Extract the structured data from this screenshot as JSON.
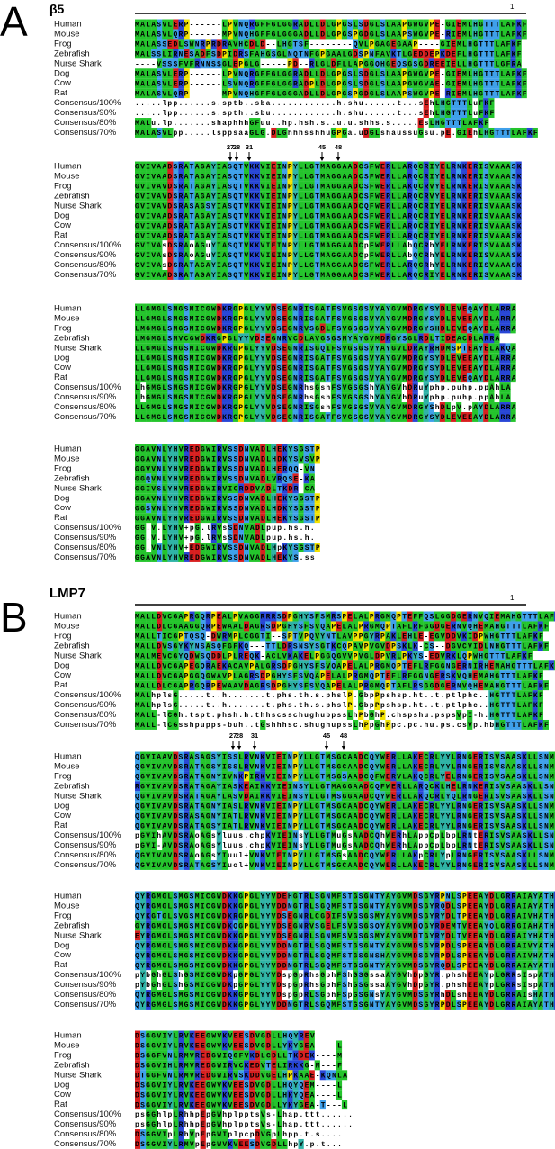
{
  "panels": [
    {
      "label": "A",
      "title": "β5",
      "position_marker": "1",
      "markers": [
        "27",
        "28",
        "31",
        "45",
        "48"
      ],
      "blocks": [
        {
          "rows": [
            {
              "name": "Human",
              "sequence": "MALASVLERP------LPVNQRGFFGLGGRADLLDLGPGSLSDGLSLAAPGWGVPE-GIEMLHGTTTLAFKF"
            },
            {
              "name": "Mouse",
              "sequence": "MALASVLQRP------MPVNQHGFFGLGGGADLLDLGPGSPGDGLSLAAPSWGVPE-RIEMLHGTTTLAFKF"
            },
            {
              "name": "Frog",
              "sequence": "MALASSEDLSWNRPRDRAVHCDLD--LHGTSF--------QVLPGAGEGAAP----GIEMLHGTTTLAFKF"
            },
            {
              "name": "Zebrafish",
              "sequence": "MALSSLIRNESADFSDPIDRSFAHGSGLNQTNFGPGAALGDSPNFAVKTLGEDDEPKDEFLHGTTTLAFKF"
            },
            {
              "name": "Nurse Shark",
              "sequence": "----VSSSFVFRNNSSGLEPGLG-----PD--RLGLDFLLAPGGQHGEQSGSGDREEIELLHGTTTLGFRA"
            },
            {
              "name": "Dog",
              "sequence": "MALASVLERP------LPVNQRGFFGLGGRADLLDLGPGSLSDGLSLAAPGWGVPE-GIEMLHGTTTLAFKF"
            },
            {
              "name": "Cow",
              "sequence": "MALASVLERP------LSVNQRGFFGLGGRADPLDLGPGSLSDGLSLAAPGWGVAE-GIEMLHGTTTLAFKF"
            },
            {
              "name": "Rat",
              "sequence": "MALASVLQRP------MPVNQHGFFGLGGGADLLDLGPGSPGDGLSLAAPSWGVPE-RIEMLHGTTTLAFKF"
            },
            {
              "name": "Consensus/100%",
              "sequence": ".....lpp......s.sptb..sba............h.shu......t...sEhLHGTTTLuFKF"
            },
            {
              "name": "Consensus/90%",
              "sequence": ".....lpp......s.spth..sbu............h.shu......t...sEhLHGTTTLuFKF"
            },
            {
              "name": "Consensus/80%",
              "sequence": "MALu.lp.......shaphhhGFuu..hp.hsh.s..u.u.shhs.s.....EsLHGTTTLAFKF"
            },
            {
              "name": "Consensus/70%",
              "sequence": "MALASVLpp.....lsppsaaGLG.DLGhhhsshhuGPGa.uDGLshaussuGsu.pE.GIEhLHGTTTLAFKF"
            }
          ]
        },
        {
          "rows": [
            {
              "name": "Human",
              "sequence": "GVIVAADSRATAGAYIASQTVKKVIEINPYLLGTMAGGAADCSFWERLLARQCRIYELRNKERISVAAASK"
            },
            {
              "name": "Mouse",
              "sequence": "GVIVAADSRATAGAYIASQTVKKVIEINPYLLGTMAGGAADCSFWERLLARQCRIYELRNKERISVAAASK"
            },
            {
              "name": "Frog",
              "sequence": "GVIVAVDSRATAGAYIASQTVKKVIEINPYLLGTMAGGAADCSFWERLLAKQCRVYELRNKERISVAAASK"
            },
            {
              "name": "Zebrafish",
              "sequence": "GVIVAVDSRATAGAYIASQTVKKVIEINPYLLGTMAGGAADCSFWERLLARQCRVYELRNKERISVAAASK"
            },
            {
              "name": "Nurse Shark",
              "sequence": "GVIVAVDSRASAGSYIASQTVKKVIEINPYLLGTMAGGAADCQFWERLLARQCRIYELRNKERISVAAASK"
            },
            {
              "name": "Dog",
              "sequence": "GVIVAADSRATAGAYIASQTVKKVIEINPYLLGTMAGGAADCSFWERLLARQCRIYELRNKERISVAAASK"
            },
            {
              "name": "Cow",
              "sequence": "GVIVAADSRATAGAYIASQTVKKVIEINPYLLGTMAGGAADCSFWERLLARQCRIYELRNKERISVAAASK"
            },
            {
              "name": "Rat",
              "sequence": "GVIVAADSRATAGAYIASQTVKKVIEINPYLLGTMAGGAADCSFWERLLARQCRIYELRNKERISVAAASK"
            },
            {
              "name": "Consensus/100%",
              "sequence": "GVIVAsDSRAoAGuYIASQTVKKVIEINPYLLGTMAGGAADCpFWERLLAbQCRhYELRNKERISVAAASK"
            },
            {
              "name": "Consensus/90%",
              "sequence": "GVIVAsDSRAoAGuYIASQTVKKVIEINPYLLGTMAGGAADCpFWERLLAbQCRhYELRNKERISVAAASK"
            },
            {
              "name": "Consensus/80%",
              "sequence": "GVIVAsDSRATAGAYIASQTVKKVIEINPYLLGTMAGGAADCSFWERLLARQCRhYELRNKERISVAAASK"
            },
            {
              "name": "Consensus/70%",
              "sequence": "GVIVAADSRATAGAYIASQTVKKVIEINPYLLGTMAGGAADCSFWERLLARQCRIYELRNKERISVAAASK"
            }
          ]
        },
        {
          "rows": [
            {
              "name": "Human",
              "sequence": "LLGMGLSMGSMICGWDKRGPGLYYVDSEGNRISGATFSVGSGSVYAYGVMDRGYSYDLEVEQAYDLARRA"
            },
            {
              "name": "Mouse",
              "sequence": "LLGMGLSMGSMICGWDKRGPGLYYVDSEGNRISGATFSVGSGSVYAYGVMDRGYSYDLEVEEAYDLARRA"
            },
            {
              "name": "Frog",
              "sequence": "LMGMGLSMGSMICGWDKRGPGLYYVDSEGNRVSGDLFSVGSGSVYAYGVMDRGYSHDLEVEQAYDLARRA"
            },
            {
              "name": "Zebrafish",
              "sequence": "LMGMGLSMVCGWDKRGPGLYYVDSEGNRVCDLAVGSGSMYAYGVMDRGYSGLRDLTIDEACDLARRA"
            },
            {
              "name": "Nurse Shark",
              "sequence": "LLGMGLSMGSMICGWDKRGPGLYYVDSEGNRISGQIFSVGSGSVYAYGVLDRAYRHDMSPTEAYELAKQA"
            },
            {
              "name": "Dog",
              "sequence": "LLGMGLSMGSMICGWDKRGPGLYYVDSEGNRISGATFSVGSGSVYAYGVMDRGYSYDLEVEEAYDLARRA"
            },
            {
              "name": "Cow",
              "sequence": "LLGMGLSMGSMICGWDKRGPGLYYVDSEGNRISGATFSVGSGSVYAYGVMDRGYSYDLEVEEAYDLARRA"
            },
            {
              "name": "Rat",
              "sequence": "LLGMGLSMGSMICGWDKRGPGLYYVDSEGNRISGATFSVGSGSVYAYGVMDRGYSYDLEVEQAYDLARRA"
            },
            {
              "name": "Consensus/100%",
              "sequence": "LhGMGLSMGSMICGWDKRGPGLYYVDSEGNRhsGshFSVGSGShYAYGVhDRuYphp.puhp.ppAhLA"
            },
            {
              "name": "Consensus/90%",
              "sequence": "LhGMGLSMGSMICGWDKRGPGLYYVDSEGNRhsGshFSVGSGShYAYGVhDRuYphp.puhp.ppAhLA"
            },
            {
              "name": "Consensus/80%",
              "sequence": "LLGMGLSMGSMICGWDKRGPGLYYVDSEGNRISGshFSVGSGSVYAYGVMDRGYShDLpV.pAYDLARRA"
            },
            {
              "name": "Consensus/70%",
              "sequence": "LLGMGLSMGSMICGWDKRGPGLYYVDSEGNRISGATFSVGSGSVYAYGVMDRGYSYDLEVEEAYDLARRA"
            }
          ]
        },
        {
          "rows": [
            {
              "name": "Human",
              "sequence": "GGAVNLYHVREDGWIRVSSDNVADLHEKYSGSTP"
            },
            {
              "name": "Mouse",
              "sequence": "GGAVNLYHVREDGWIRVSSDNVADLHDKYSVSVP"
            },
            {
              "name": "Frog",
              "sequence": "GGVVNLYHVREDGWIRVSSDNVADLHERQQ-VN"
            },
            {
              "name": "Zebrafish",
              "sequence": "GGQVNLYHVREDGWIRVSSDNVADLVRQSE-KA"
            },
            {
              "name": "Nurse Shark",
              "sequence": "GGIVSLYHVREDGWIRVICRDDVADLTKDR-CA"
            },
            {
              "name": "Dog",
              "sequence": "GGAVNLYHVREDGWIRVSSDNVADLHEKYSGSTP"
            },
            {
              "name": "Cow",
              "sequence": "GGSVNLYHVREDGWIRVSSDNVADLHDKYSGSTP"
            },
            {
              "name": "Rat",
              "sequence": "GGAVNLYHVREDGWIRVSSDNVADLHEKYSGSTP"
            },
            {
              "name": "Consensus/100%",
              "sequence": "GG.V.LYHV+pG.lRVsSDNVADLpup.hs.h."
            },
            {
              "name": "Consensus/90%",
              "sequence": "GG.V.LYHV+pG.lRVsSDNVADLpup.hs.h."
            },
            {
              "name": "Consensus/80%",
              "sequence": "GG.VNLYHV+EDGWIRVSSDNVADLHpKYSGSTP"
            },
            {
              "name": "Consensus/70%",
              "sequence": "GGAVNLYHVREDGWIRVSSDNVADLHEKYS.ss"
            }
          ]
        }
      ]
    },
    {
      "label": "B",
      "title": "LMP7",
      "position_marker": "1",
      "markers": [
        "27",
        "28",
        "31",
        "45",
        "48"
      ],
      "blocks": [
        {
          "rows": [
            {
              "name": "Human",
              "sequence": "MALLDVCGAPRGQRPEALPVAGGRRRSDPGHYSFSMRSPELALPRGMQPTEFFQSLGGDGERNVQIEMAHGTTTLAFKF"
            },
            {
              "name": "Mouse",
              "sequence": "MALLDLCGAAGGQRPEWAALDAGRSDPGHYSFSVQAPELALPRGMQPTAFLRFGGDGERNVQHEMAHGTTTLAFKF"
            },
            {
              "name": "Frog",
              "sequence": "MALLTICGPTQSQ-DWRMPLCGGTI--SPTVPQVYNTLAVPPGYRPAKLEHLE-EGVDDVKIDPWHGTTTLAFKF"
            },
            {
              "name": "Zebrafish",
              "sequence": "MALLDVSGYKYNSASQFGFKQ---TTLDRSNSYSGTKCQPAVPVGVDPSKLK-CS--DGVCVIDLNHGTTTLAFKF"
            },
            {
              "name": "Nurse Shark",
              "sequence": "MALMEVCGYQDWSQDDLPLREQK-ACLVKAKELPGGQGVVPVGLDPVRLPKYS-EDVRKLQPWHGTTTLAFKF"
            },
            {
              "name": "Dog",
              "sequence": "MALLDVCGAPEGQRAEKACAVPALGRSDPGHYSFSVQAPELALPRGMQPTEFLRFGGNGERNIRHEMAHGTTTLAFKF"
            },
            {
              "name": "Cow",
              "sequence": "MALLDVCGAPGGQGWAVPLAGRSDPGHYSFSVQAPELALPRGMQPTEFLRFGGNGERSKVQHEMAHGTTTLAFKF"
            },
            {
              "name": "Rat",
              "sequence": "MALLDLCGAPRGQRPEWAAVDAGRSDPGHYSFSVQAPELALPRGMQPTAFLRSGGDGERNVQHEMAHGTTTLAFKF"
            },
            {
              "name": "Consensus/100%",
              "sequence": "MALhplsG.....t..h.......t.phs.th.s.phslP.GbpPpshsp.ht..t.ptlphc..HGTTTLAFKF"
            },
            {
              "name": "Consensus/90%",
              "sequence": "MALhplsG.....t..h.......t.phs.th.s.phslP.GbpPpshsp.ht..t.ptlphc..HGTTTLAFKF"
            },
            {
              "name": "Consensus/80%",
              "sequence": "MALL-lCGh.tspt.phsh.h.thhscsschughubpssLhPbGhP.chspshu.pspsVpI-h.HGTTTLAFKF"
            },
            {
              "name": "Consensus/70%",
              "sequence": "MALL-lCGsshpupps-buh..tGshhhsc.shughupssLhPpGhPpc.pc.hu.ps.csVp.hbHGTTTLAFKF"
            }
          ]
        },
        {
          "rows": [
            {
              "name": "Human",
              "sequence": "QGVIAAVDSRASAGSYISSLRVNKVIEINPYLLGTMSGCAADCQYWERLLAKECRLYYLRNGERISVSAASKLLSNMM"
            },
            {
              "name": "Mouse",
              "sequence": "QGVIVAVDSRATAGSYISSLRVNKVIEINPYLLGTMSGCAADCQYWERLLAKECRLYYLRNGERISVSAASKLLSNMM"
            },
            {
              "name": "Frog",
              "sequence": "QGVIVAVDSRATAGNYIVNKPIRKVIEINPYLLGTMSGSAADCQFWERVLAKQCRLYELRNGERISVSAASKLLSNMM"
            },
            {
              "name": "Zebrafish",
              "sequence": "RGVIVAVDSRATAGAYIASKEAIKKVIEINSYLLGTMAGGAADCQFWERLLARQCKLHELRNKERISVSAASKLLSNMM"
            },
            {
              "name": "Nurse Shark",
              "sequence": "QGVIVAVDSRATAGAYLASVDAIKKVIEINSYLLGTMSGGAADCQYWERLLAKQCRLYQLRNGERISVSAASKLLSNMM"
            },
            {
              "name": "Dog",
              "sequence": "QGVIVAVDSRATAGNYIASLRVNKVIEINPYLLGTMSGCAADCQYWERLLAKECRLYYLRNGERISVSAASKLLSNMV"
            },
            {
              "name": "Cow",
              "sequence": "QGVIVAVDSRASAGNYIATLRVNKVIEINPYLLGTMSGCAADCQYWERLLAKECRLYYLRNGERISVSAASKLLSNMM"
            },
            {
              "name": "Rat",
              "sequence": "QGVIVAVDSRATAGSYIATLRVNKVIEINPYLLGTMSGCAADCQYWERLLAKECRLYYLRNGERISVSAASKLLSNMM"
            },
            {
              "name": "Consensus/100%",
              "sequence": "pGVIhAVDSRAoAGsYluus.chpKVIEINsYLLGTMuGsAADCQhWERhLAppCpLbpLRNtERISVSAASKLLSNMh"
            },
            {
              "name": "Consensus/90%",
              "sequence": "pGVI-AVDSRAoAGsYluus.chpKVIEINsYLLGTMuGsAADCQhWERhLAppCpLbpLRNtERISVSAASKLLSNMh"
            },
            {
              "name": "Consensus/80%",
              "sequence": "QGVIVAVDSRAoAGsYIuul+VNKVIEINPYLLGTMSGsAADCQYWERLLAKpCRLYpLRNGERISVSAASKLLSNMM"
            },
            {
              "name": "Consensus/70%",
              "sequence": "QGVIVAVDSRATAGSYIuol+VNKVIEINPYLLGTMSGCAADCQYWERLLAKECRLYYLRNGERISVSAASKLLSNMM"
            }
          ]
        },
        {
          "rows": [
            {
              "name": "Human",
              "sequence": "QYRGMGLSMGSMICGWDKKGPGLYYVDEHGTRLSGNMFSTGSGNTYAYGVMDSGYRPNLSPEEAYDLGRRAIAYATHR"
            },
            {
              "name": "Mouse",
              "sequence": "QYRGMGLSMGSMICGWDKKGPGLYYVDDNGTRLSGQMFSTGSGNTYAYGVMDSGYRQDLSPEEAYDLGRRAIAYATHR"
            },
            {
              "name": "Frog",
              "sequence": "QYKGTGLSVGSMICGWDKRGPGLYYVDSEGNRLCGDIFSVGSGSMYAYGVMDSGYRYDLTPEEAYDLGRRAIVHATHR"
            },
            {
              "name": "Zebrafish",
              "sequence": "GYRGMGLSMGSMICGWDKQGPGLYYVDSEGNRVSGELFSVGSGSQYAYGVMDQGYRDEMTVEEAYQLGRRGIAHATHR"
            },
            {
              "name": "Nurse Shark",
              "sequence": "EYRGMGLSMGSMICGWDKKGPGLYYVDSEGNRLSGNMFSVGSGSMYAYGVMDTGYRYDLTVEEAYDLGRRAIYHATHR"
            },
            {
              "name": "Dog",
              "sequence": "QYRGMGLSMGSMICGWDKKGPGLYYVDDNGTRLSGQMFSTGSGNTYAYGVMDSGYRPDLSPEEAYDLGRRAIVYATHR"
            },
            {
              "name": "Cow",
              "sequence": "QYRGMGLSMGSMICGWDKKGPGLYYVDDNGTRLSGQMFSTGSGNSHAYGVMDSGYRPDLSPEEAYDLGRRAIVHATHR"
            },
            {
              "name": "Rat",
              "sequence": "QYRGMGLSMGSMICGWDKKGPGLYYVDDNGTRLSGQMFSTGSGNTYAYGVMDSGYRQDLSPEEAYDLGRRAIAYATHR"
            },
            {
              "name": "Consensus/100%",
              "sequence": "pYbGhGLShGSMICGWDKpGPGLYYVDspGpRhsGphFShGSGssaAYGVhDpGYR.phshEEAYpLGRRsIspATHR"
            },
            {
              "name": "Consensus/90%",
              "sequence": "pYbGhGLShGSMICGWDKpGPGLYYVDspGpRhsGphFShGSGssaAYGVhDpGYR.phshEEAYpLGRRsIspATHR"
            },
            {
              "name": "Consensus/80%",
              "sequence": "QYRGMGLSMGSMICGWDKKGPGLYYVDspGpRLSGphFSpGSGNsYAYGVMDSGYRhDLshEEAYDLGRRAIsHATHR"
            },
            {
              "name": "Consensus/70%",
              "sequence": "QYRGMGLSMGSMICGWDKKGPGLYYVDDNGTRLSGQMFSTGSGNTYAYGVMDSGYRPDLSPEEAYDLGRRAIAYATHR"
            }
          ]
        },
        {
          "rows": [
            {
              "name": "Human",
              "sequence": "DSGGVIYLRVKEEGWVKVEESDVGDLLHQYREV"
            },
            {
              "name": "Mouse",
              "sequence": "DSGGVIYLRVKEEGWVKVEESDVGDLLYKYGEA----L"
            },
            {
              "name": "Frog",
              "sequence": "DSGGFVNLRMVREDGWIQGFVKDLCDLLTKDEK----M"
            },
            {
              "name": "Zebrafish",
              "sequence": "DSGGVIHLRMVREDGWIRVCKEDVTELIRKKG-M---F"
            },
            {
              "name": "Nurse Shark",
              "sequence": "DTGGFVNLRMVREDGWIRVSKDDVGELHPKAAE-KQNLA"
            },
            {
              "name": "Dog",
              "sequence": "DSGGVIYLRVKEEGWVKVEESDVGDLLHQYQEM----L"
            },
            {
              "name": "Cow",
              "sequence": "DSGGVIYLRVKEEGWVKVEESDVGDLLHKYQEA----L"
            },
            {
              "name": "Rat",
              "sequence": "DSGGVIYLRVKEEGWVKVEESDVGDLLYKYGEA-T---L"
            },
            {
              "name": "Consensus/100%",
              "sequence": "psGGhlpLRhhpEpGWhplpptsVs-Lhap.ttt......"
            },
            {
              "name": "Consensus/90%",
              "sequence": "psGGhlpLRhhpEpGWhplpptsVs-Lhap.ttt......"
            },
            {
              "name": "Consensus/80%",
              "sequence": "DSGGVIpLRhVpEpGWIplpcpDVGpLhpp.t.s...."
            },
            {
              "name": "Consensus/70%",
              "sequence": "DSGGVIYLRMVpEpGWVKVEESDVGDLLhpY.p.t..."
            }
          ]
        }
      ]
    }
  ]
}
